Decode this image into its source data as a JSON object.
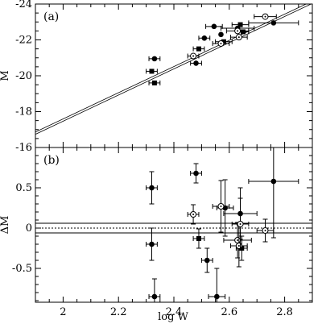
{
  "chart_data": [
    {
      "type": "scatter",
      "panel_label": "(a)",
      "ylabel": "M",
      "xlim": [
        1.9,
        2.9
      ],
      "ylim": [
        -16,
        -24
      ],
      "x_ticks": [
        "2",
        "2.2",
        "2.4",
        "2.6",
        "2.8"
      ],
      "y_ticks": [
        "-24",
        "-22",
        "-20",
        "-18",
        "-16"
      ],
      "fit_line": {
        "x": [
          1.9,
          2.9
        ],
        "y": [
          -16.8,
          -24.1
        ]
      },
      "series": [
        {
          "marker": "filled-circle",
          "points": [
            {
              "x": 2.33,
              "y": -20.95,
              "xerr": 0.02,
              "yerr": 0
            },
            {
              "x": 2.48,
              "y": -20.7,
              "xerr": 0.02,
              "yerr": 0
            },
            {
              "x": 2.51,
              "y": -22.1,
              "xerr": 0.02,
              "yerr": 0
            },
            {
              "x": 2.545,
              "y": -22.75,
              "xerr": 0.03,
              "yerr": 0
            },
            {
              "x": 2.57,
              "y": -22.3,
              "xerr": 0,
              "yerr": 0
            },
            {
              "x": 2.63,
              "y": -22.65,
              "xerr": 0.06,
              "yerr": 0
            },
            {
              "x": 2.76,
              "y": -22.95,
              "xerr": 0.09,
              "yerr": 0
            }
          ]
        },
        {
          "marker": "filled-square",
          "points": [
            {
              "x": 2.32,
              "y": -20.25,
              "xerr": 0.02,
              "yerr": 0
            },
            {
              "x": 2.33,
              "y": -19.6,
              "xerr": 0.02,
              "yerr": 0
            },
            {
              "x": 2.49,
              "y": -21.5,
              "xerr": 0.02,
              "yerr": 0
            },
            {
              "x": 2.58,
              "y": -21.9,
              "xerr": 0.03,
              "yerr": 0
            },
            {
              "x": 2.64,
              "y": -22.85,
              "xerr": 0.03,
              "yerr": 0
            },
            {
              "x": 2.65,
              "y": -22.45,
              "xerr": 0.02,
              "yerr": 0
            }
          ]
        },
        {
          "marker": "open-circle-dot",
          "points": [
            {
              "x": 2.47,
              "y": -21.1,
              "xerr": 0.02,
              "yerr": 0
            },
            {
              "x": 2.57,
              "y": -21.8,
              "xerr": 0.03,
              "yerr": 0
            },
            {
              "x": 2.63,
              "y": -22.5,
              "xerr": 0.04,
              "yerr": 0
            },
            {
              "x": 2.635,
              "y": -22.15,
              "xerr": 0.03,
              "yerr": 0
            },
            {
              "x": 2.73,
              "y": -23.3,
              "xerr": 0.04,
              "yerr": 0
            }
          ]
        }
      ]
    },
    {
      "type": "scatter",
      "panel_label": "(b)",
      "xlabel": "log W",
      "ylabel": "ΔM",
      "xlim": [
        1.9,
        2.9
      ],
      "ylim": [
        -0.92,
        1.0
      ],
      "x_ticks": [
        "2",
        "2.2",
        "2.4",
        "2.6",
        "2.8"
      ],
      "y_ticks": [
        "0.5",
        "0",
        "-0.5"
      ],
      "ref_lines": [
        0.06,
        0,
        -0.06
      ],
      "series": [
        {
          "marker": "filled-circle",
          "points": [
            {
              "x": 2.32,
              "y": 0.5,
              "xerr": 0.02,
              "yerr": 0.2
            },
            {
              "x": 2.32,
              "y": -0.2,
              "xerr": 0.02,
              "yerr": 0.2
            },
            {
              "x": 2.33,
              "y": -0.85,
              "xerr": 0.02,
              "yerr": 0.22
            },
            {
              "x": 2.48,
              "y": 0.68,
              "xerr": 0.02,
              "yerr": 0.12
            },
            {
              "x": 2.52,
              "y": -0.4,
              "xerr": 0.02,
              "yerr": 0.15
            },
            {
              "x": 2.555,
              "y": -0.85,
              "xerr": 0.03,
              "yerr": 0.35
            },
            {
              "x": 2.585,
              "y": 0.25,
              "xerr": 0.03,
              "yerr": 0.35
            },
            {
              "x": 2.64,
              "y": 0.18,
              "xerr": 0.06,
              "yerr": 0.32
            },
            {
              "x": 2.76,
              "y": 0.58,
              "xerr": 0.09,
              "yerr": 0.7
            }
          ]
        },
        {
          "marker": "filled-square",
          "points": [
            {
              "x": 2.49,
              "y": -0.13,
              "xerr": 0.02,
              "yerr": 0.12
            },
            {
              "x": 2.645,
              "y": -0.25,
              "xerr": 0.02,
              "yerr": 0.15
            }
          ]
        },
        {
          "marker": "open-circle-dot",
          "points": [
            {
              "x": 2.47,
              "y": 0.17,
              "xerr": 0.02,
              "yerr": 0.12
            },
            {
              "x": 2.57,
              "y": 0.27,
              "xerr": 0.03,
              "yerr": 0.32
            },
            {
              "x": 2.63,
              "y": -0.15,
              "xerr": 0.05,
              "yerr": 0.22
            },
            {
              "x": 2.635,
              "y": -0.22,
              "xerr": 0.03,
              "yerr": 0.26
            },
            {
              "x": 2.64,
              "y": 0.05,
              "xerr": 0.03,
              "yerr": 0.32
            },
            {
              "x": 2.73,
              "y": -0.03,
              "xerr": 0.03,
              "yerr": 0.14
            }
          ]
        }
      ]
    }
  ]
}
